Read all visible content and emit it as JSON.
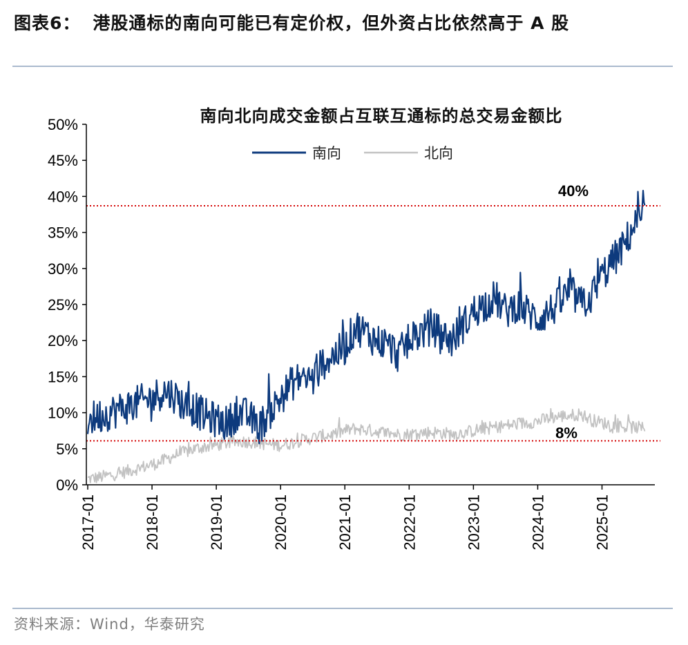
{
  "figure": {
    "label": "图表6：",
    "title": "港股通标的南向可能已有定价权，但外资占比依然高于 A 股"
  },
  "source": "资料来源：Wind，华泰研究",
  "chart_data": {
    "type": "line",
    "title": "南向北向成交金额占互联互通标的总交易金额比",
    "xlabel": "",
    "ylabel": "",
    "x_ticks": [
      "2017-01",
      "2018-01",
      "2019-01",
      "2020-01",
      "2021-01",
      "2022-01",
      "2023-01",
      "2024-01",
      "2025-01"
    ],
    "y_ticks": [
      "0%",
      "5%",
      "10%",
      "15%",
      "20%",
      "25%",
      "30%",
      "35%",
      "40%",
      "45%",
      "50%"
    ],
    "ylim": [
      0,
      50
    ],
    "xlim": [
      "2017-01",
      "2025-09"
    ],
    "legend_position": "top-center",
    "grid": false,
    "x": [
      "2017-01",
      "2017-03",
      "2017-05",
      "2017-07",
      "2017-09",
      "2017-11",
      "2018-01",
      "2018-03",
      "2018-05",
      "2018-07",
      "2018-09",
      "2018-11",
      "2019-01",
      "2019-03",
      "2019-05",
      "2019-07",
      "2019-09",
      "2019-11",
      "2020-01",
      "2020-03",
      "2020-05",
      "2020-07",
      "2020-09",
      "2020-11",
      "2021-01",
      "2021-03",
      "2021-05",
      "2021-07",
      "2021-09",
      "2021-11",
      "2022-01",
      "2022-03",
      "2022-05",
      "2022-07",
      "2022-09",
      "2022-11",
      "2023-01",
      "2023-03",
      "2023-05",
      "2023-07",
      "2023-09",
      "2023-11",
      "2024-01",
      "2024-03",
      "2024-05",
      "2024-07",
      "2024-09",
      "2024-11",
      "2025-01",
      "2025-03",
      "2025-05",
      "2025-07",
      "2025-09"
    ],
    "series": [
      {
        "name": "南向",
        "color": "#0d3a7d",
        "values": [
          9,
          9.5,
          10,
          10.5,
          11,
          11.5,
          12,
          13,
          12.5,
          11,
          10.5,
          9.5,
          9,
          8.5,
          10,
          9.5,
          8,
          10,
          12,
          14,
          15,
          14.5,
          17,
          18,
          19,
          22,
          21,
          20,
          19.5,
          18,
          20,
          21,
          22,
          21,
          20,
          22,
          24,
          25,
          26,
          24,
          25,
          24,
          23,
          24,
          25,
          27,
          25,
          26,
          29,
          31,
          33,
          36,
          37
        ],
        "noise": 2.5
      },
      {
        "name": "北向",
        "color": "#c2c2c2",
        "values": [
          0.8,
          1,
          1.3,
          1.6,
          2,
          2.4,
          2.8,
          3.3,
          4,
          4.5,
          5,
          5.3,
          5.5,
          5.8,
          6,
          6,
          5.8,
          5.6,
          5.5,
          5.8,
          6.2,
          6.5,
          6.8,
          7,
          7.5,
          7.8,
          7.6,
          7.4,
          7.2,
          7,
          7,
          7.2,
          7.3,
          7.2,
          7,
          7.2,
          7.5,
          7.8,
          8,
          8.2,
          8.4,
          8.6,
          8.8,
          9.2,
          9.5,
          9.6,
          9.8,
          9,
          8.6,
          8.3,
          8,
          8,
          7.8
        ],
        "noise": 0.9
      }
    ],
    "reference_lines": [
      {
        "value": 38.7,
        "label": "40%",
        "color": "#d40000"
      },
      {
        "value": 6.1,
        "label": "8%",
        "color": "#d40000"
      }
    ]
  }
}
